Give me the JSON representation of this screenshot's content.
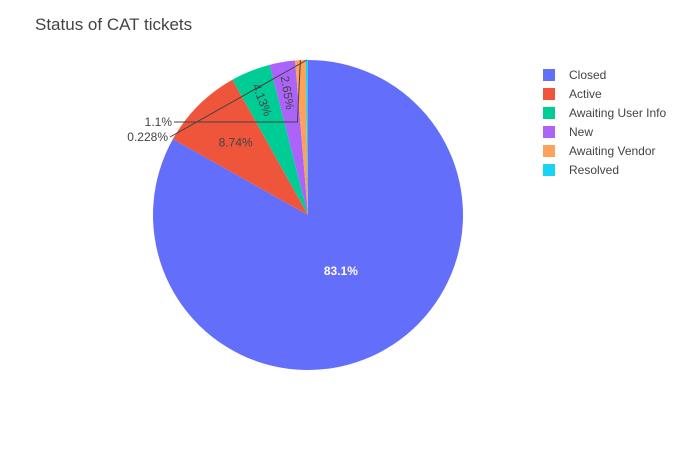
{
  "chart_data": {
    "type": "pie",
    "title": "Status of CAT tickets",
    "direction": "clockwise",
    "legend_position": "top-right",
    "slices": [
      {
        "label": "Closed",
        "percent": 83.1,
        "text": "83.1%",
        "color": "#636efa",
        "text_color": "#ffffff",
        "text_weight": "bold"
      },
      {
        "label": "Active",
        "percent": 8.74,
        "text": "8.74%",
        "color": "#ef553b",
        "text_color": "#444444",
        "text_weight": "normal"
      },
      {
        "label": "Awaiting User Info",
        "percent": 4.13,
        "text": "4.13%",
        "color": "#00cc96",
        "text_color": "#444444",
        "text_weight": "normal"
      },
      {
        "label": "New",
        "percent": 2.65,
        "text": "2.65%",
        "color": "#ab63fa",
        "text_color": "#444444",
        "text_weight": "normal"
      },
      {
        "label": "Awaiting Vendor",
        "percent": 1.1,
        "text": "1.1%",
        "color": "#ffa15a",
        "text_color": "#444444",
        "text_weight": "normal"
      },
      {
        "label": "Resolved",
        "percent": 0.228,
        "text": "0.228%",
        "color": "#19d3f3",
        "text_color": "#444444",
        "text_weight": "normal"
      }
    ]
  }
}
